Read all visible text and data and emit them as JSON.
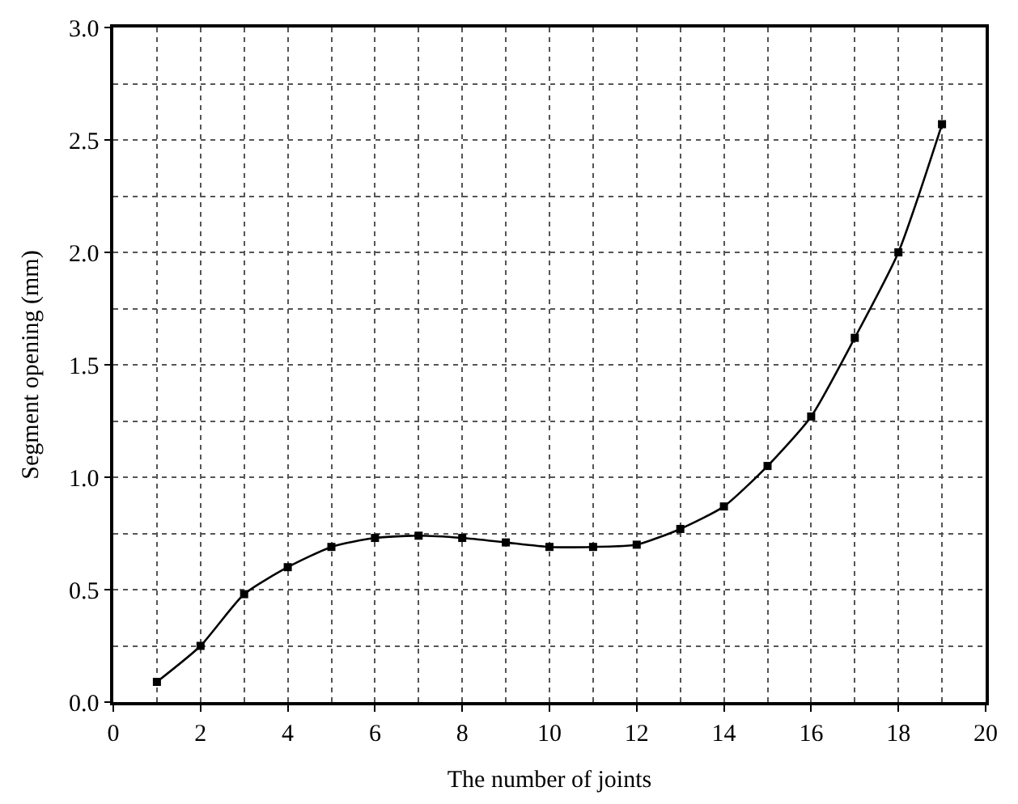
{
  "chart_data": {
    "type": "line",
    "xlabel": "The number of joints",
    "ylabel": "Segment opening (mm)",
    "x": [
      1,
      2,
      3,
      4,
      5,
      6,
      7,
      8,
      9,
      10,
      11,
      12,
      13,
      14,
      15,
      16,
      17,
      18,
      19
    ],
    "series": [
      {
        "color": "#000000",
        "values": [
          0.09,
          0.25,
          0.48,
          0.6,
          0.69,
          0.73,
          0.74,
          0.73,
          0.71,
          0.69,
          0.69,
          0.7,
          0.77,
          0.87,
          1.05,
          1.27,
          1.62,
          2.0,
          2.57
        ]
      }
    ],
    "xlim": [
      0,
      20
    ],
    "xticks": [
      0,
      2,
      4,
      6,
      8,
      10,
      12,
      14,
      16,
      18,
      20
    ],
    "ylim": [
      0,
      3.0
    ],
    "yticks": [
      {
        "value": 0,
        "label": "0.0"
      },
      {
        "value": 0.5,
        "label": "0.5"
      },
      {
        "value": 1.0,
        "label": "1.0"
      },
      {
        "value": 1.5,
        "label": "1.5"
      },
      {
        "value": 2.0,
        "label": "2.0"
      },
      {
        "value": 2.5,
        "label": "2.5"
      },
      {
        "value": 3.0,
        "label": "3.0"
      }
    ],
    "grid": true,
    "marker": "square",
    "line_style": "solid"
  }
}
